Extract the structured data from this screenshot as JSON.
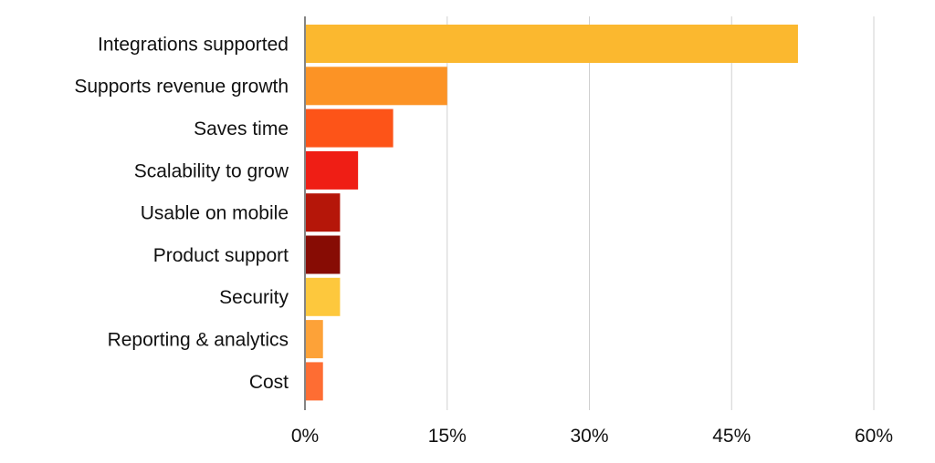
{
  "chart_data": {
    "type": "bar",
    "orientation": "horizontal",
    "title": "",
    "xlabel": "",
    "ylabel": "",
    "categories": [
      "Integrations supported",
      "Supports revenue growth",
      "Saves time",
      "Scalability to grow",
      "Usable on mobile",
      "Product support",
      "Security",
      "Reporting & analytics",
      "Cost"
    ],
    "values": [
      52,
      15,
      9.3,
      5.6,
      3.7,
      3.7,
      3.7,
      1.9,
      1.9
    ],
    "colors": [
      "#FBB82F",
      "#FC9325",
      "#FD5418",
      "#EF1E15",
      "#B51609",
      "#870C04",
      "#FDC83D",
      "#FDA238",
      "#FE6D33"
    ],
    "xlim": [
      0,
      60
    ],
    "ticks": [
      0,
      15,
      30,
      45,
      60
    ],
    "tick_labels": [
      "0%",
      "15%",
      "30%",
      "45%",
      "60%"
    ],
    "grid": "vertical",
    "legend": "none"
  }
}
